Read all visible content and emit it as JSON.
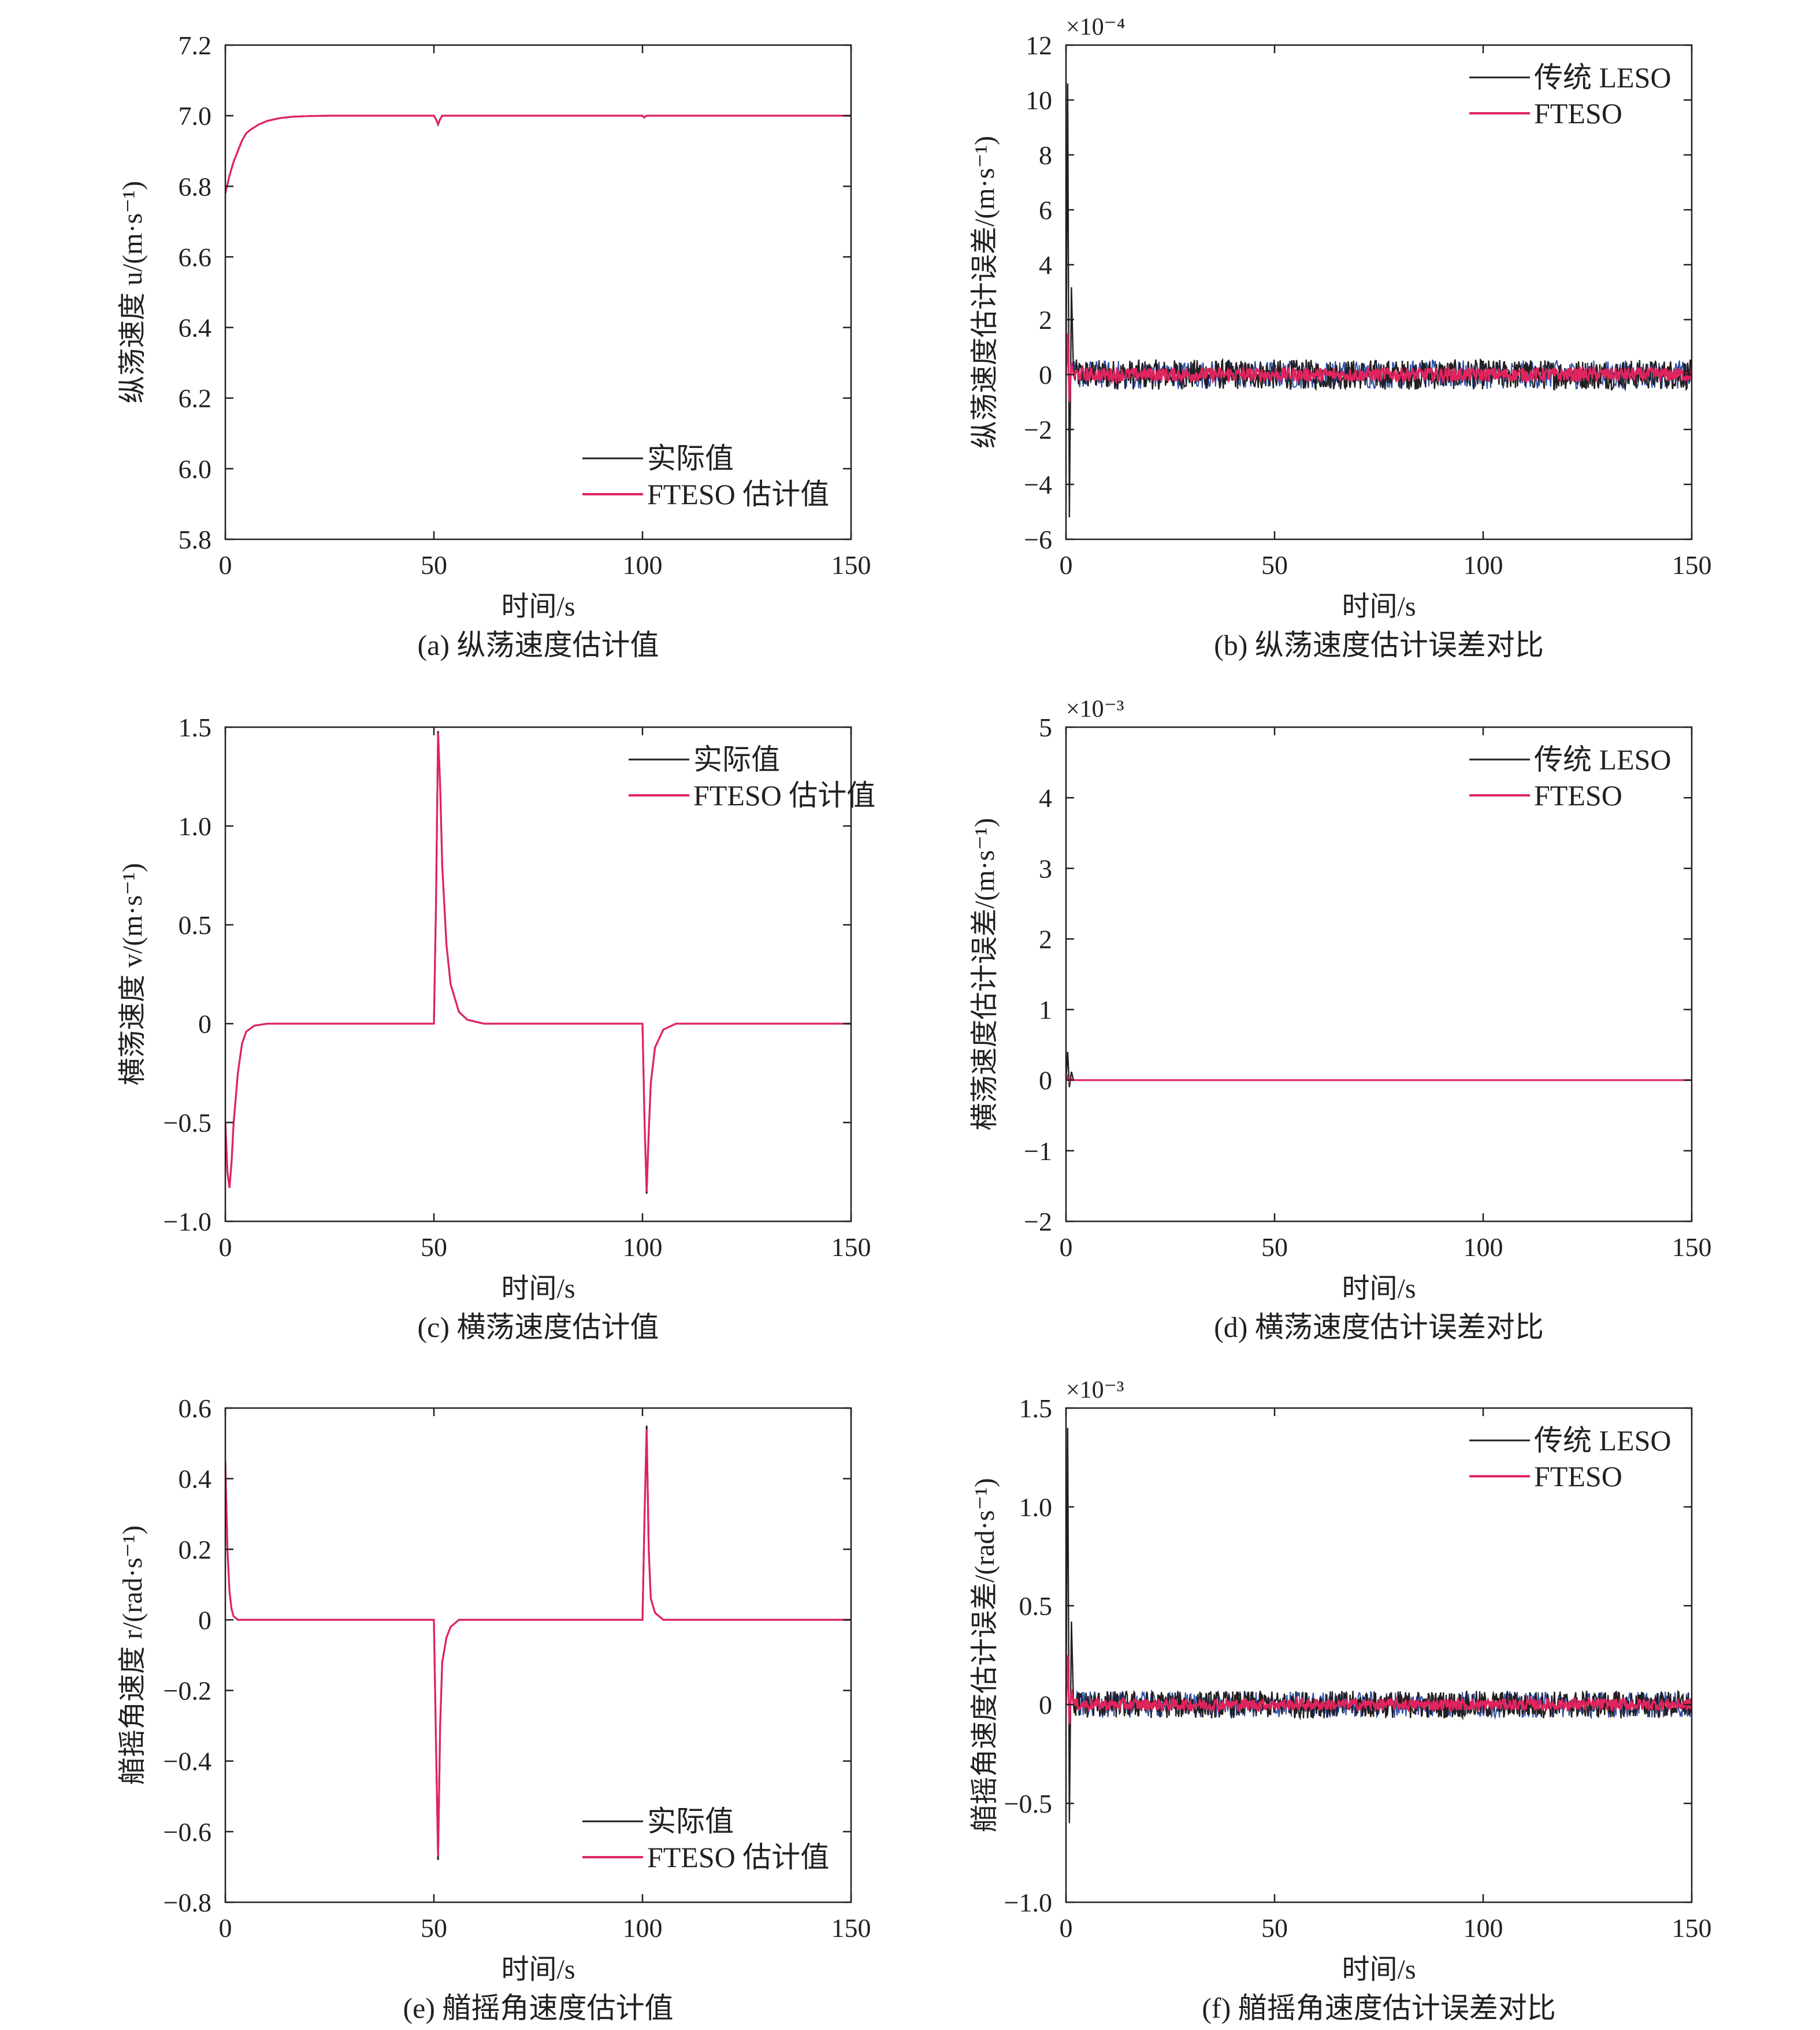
{
  "colors": {
    "actual": "#231f20",
    "fteso": "#e0245e",
    "leso": "#2b4fa6",
    "axis": "#231f20"
  },
  "chart_data": [
    {
      "id": "a",
      "type": "line",
      "caption": "(a) 纵荡速度估计值",
      "xlabel": "时间/s",
      "ylabel": "纵荡速度 u/(m·s⁻¹)",
      "xlim": [
        0,
        150
      ],
      "ylim": [
        5.8,
        7.2
      ],
      "xticks": [
        0,
        50,
        100,
        150
      ],
      "yticks": [
        5.8,
        6.0,
        6.2,
        6.4,
        6.6,
        6.8,
        7.0,
        7.2
      ],
      "ytick_labels": [
        "5.8",
        "6.0",
        "6.2",
        "6.4",
        "6.6",
        "6.8",
        "7.0",
        "7.2"
      ],
      "legend_position": "bottom-right",
      "series": [
        {
          "name": "实际值",
          "color": "#231f20",
          "points": [
            [
              0,
              6.78
            ],
            [
              1,
              6.83
            ],
            [
              2,
              6.87
            ],
            [
              3,
              6.9
            ],
            [
              4,
              6.93
            ],
            [
              5,
              6.95
            ],
            [
              6,
              6.96
            ],
            [
              8,
              6.975
            ],
            [
              10,
              6.985
            ],
            [
              13,
              6.993
            ],
            [
              16,
              6.997
            ],
            [
              20,
              6.999
            ],
            [
              25,
              7.0
            ],
            [
              50,
              7.0
            ],
            [
              50.5,
              6.99
            ],
            [
              51,
              6.975
            ],
            [
              51.5,
              6.99
            ],
            [
              52,
              7.0
            ],
            [
              100,
              7.0
            ],
            [
              100.4,
              6.995
            ],
            [
              101,
              7.0
            ],
            [
              150,
              7.0
            ]
          ]
        },
        {
          "name": "FTESO 估计值",
          "color": "#e0245e",
          "points": [
            [
              0,
              6.78
            ],
            [
              1,
              6.83
            ],
            [
              2,
              6.87
            ],
            [
              3,
              6.9
            ],
            [
              4,
              6.93
            ],
            [
              5,
              6.95
            ],
            [
              6,
              6.96
            ],
            [
              8,
              6.975
            ],
            [
              10,
              6.985
            ],
            [
              13,
              6.993
            ],
            [
              16,
              6.997
            ],
            [
              20,
              6.999
            ],
            [
              25,
              7.0
            ],
            [
              50,
              7.0
            ],
            [
              50.5,
              6.99
            ],
            [
              51,
              6.977
            ],
            [
              51.5,
              6.99
            ],
            [
              52,
              7.0
            ],
            [
              100,
              7.0
            ],
            [
              100.4,
              6.995
            ],
            [
              101,
              7.0
            ],
            [
              150,
              7.0
            ]
          ]
        }
      ]
    },
    {
      "id": "b",
      "type": "line",
      "caption": "(b) 纵荡速度估计误差对比",
      "xlabel": "时间/s",
      "ylabel": "纵荡速度估计误差/(m·s⁻¹)",
      "multiplier": "×10⁻⁴",
      "xlim": [
        0,
        150
      ],
      "ylim": [
        -6,
        12
      ],
      "xticks": [
        0,
        50,
        100,
        150
      ],
      "yticks": [
        -6,
        -4,
        -2,
        0,
        2,
        4,
        6,
        8,
        10,
        12
      ],
      "ytick_labels": [
        "−6",
        "−4",
        "−2",
        "0",
        "2",
        "4",
        "6",
        "8",
        "10",
        "12"
      ],
      "legend_position": "top-right",
      "series": [
        {
          "name": "传统 LESO",
          "color": "#231f20",
          "initial_spike": [
            10.6,
            -5.2
          ],
          "noise_band": [
            -0.55,
            0.55
          ]
        },
        {
          "name": "FTESO",
          "color": "#e0245e",
          "initial_spike": [
            1.5,
            -1.0
          ],
          "noise_band": [
            -0.25,
            0.25
          ]
        }
      ]
    },
    {
      "id": "c",
      "type": "line",
      "caption": "(c) 横荡速度估计值",
      "xlabel": "时间/s",
      "ylabel": "横荡速度 v/(m·s⁻¹)",
      "xlim": [
        0,
        150
      ],
      "ylim": [
        -1.0,
        1.5
      ],
      "xticks": [
        0,
        50,
        100,
        150
      ],
      "yticks": [
        -1.0,
        -0.5,
        0,
        0.5,
        1.0,
        1.5
      ],
      "ytick_labels": [
        "−1.0",
        "−0.5",
        "0",
        "0.5",
        "1.0",
        "1.5"
      ],
      "legend_position": "top-right",
      "series": [
        {
          "name": "实际值",
          "color": "#231f20",
          "points": [
            [
              0,
              -0.5
            ],
            [
              0.5,
              -0.75
            ],
            [
              1,
              -0.83
            ],
            [
              1.5,
              -0.7
            ],
            [
              2,
              -0.5
            ],
            [
              3,
              -0.25
            ],
            [
              4,
              -0.1
            ],
            [
              5,
              -0.04
            ],
            [
              7,
              -0.01
            ],
            [
              10,
              0
            ],
            [
              50,
              0
            ],
            [
              50.5,
              0.6
            ],
            [
              51,
              1.48
            ],
            [
              51.5,
              1.2
            ],
            [
              52,
              0.8
            ],
            [
              53,
              0.4
            ],
            [
              54,
              0.2
            ],
            [
              56,
              0.06
            ],
            [
              58,
              0.02
            ],
            [
              62,
              0
            ],
            [
              100,
              0
            ],
            [
              100.5,
              -0.5
            ],
            [
              101,
              -0.86
            ],
            [
              101.5,
              -0.55
            ],
            [
              102,
              -0.3
            ],
            [
              103,
              -0.12
            ],
            [
              105,
              -0.03
            ],
            [
              108,
              0
            ],
            [
              150,
              0
            ]
          ]
        },
        {
          "name": "FTESO 估计值",
          "color": "#e0245e",
          "points": [
            [
              0,
              -0.5
            ],
            [
              0.5,
              -0.75
            ],
            [
              1,
              -0.83
            ],
            [
              1.5,
              -0.7
            ],
            [
              2,
              -0.5
            ],
            [
              3,
              -0.25
            ],
            [
              4,
              -0.1
            ],
            [
              5,
              -0.04
            ],
            [
              7,
              -0.01
            ],
            [
              10,
              0
            ],
            [
              50,
              0
            ],
            [
              50.5,
              0.6
            ],
            [
              51,
              1.47
            ],
            [
              51.5,
              1.2
            ],
            [
              52,
              0.8
            ],
            [
              53,
              0.4
            ],
            [
              54,
              0.2
            ],
            [
              56,
              0.06
            ],
            [
              58,
              0.02
            ],
            [
              62,
              0
            ],
            [
              100,
              0
            ],
            [
              100.5,
              -0.5
            ],
            [
              101,
              -0.85
            ],
            [
              101.5,
              -0.55
            ],
            [
              102,
              -0.3
            ],
            [
              103,
              -0.12
            ],
            [
              105,
              -0.03
            ],
            [
              108,
              0
            ],
            [
              150,
              0
            ]
          ]
        }
      ]
    },
    {
      "id": "d",
      "type": "line",
      "caption": "(d) 横荡速度估计误差对比",
      "xlabel": "时间/s",
      "ylabel": "横荡速度估计误差/(m·s⁻¹)",
      "multiplier": "×10⁻³",
      "xlim": [
        0,
        150
      ],
      "ylim": [
        -2,
        5
      ],
      "xticks": [
        0,
        50,
        100,
        150
      ],
      "yticks": [
        -2,
        -1,
        0,
        1,
        2,
        3,
        4,
        5
      ],
      "ytick_labels": [
        "−2",
        "−1",
        "0",
        "1",
        "2",
        "3",
        "4",
        "5"
      ],
      "legend_position": "top-right",
      "series": [
        {
          "name": "传统 LESO",
          "color": "#231f20",
          "initial_spike": [
            0.4,
            -0.1
          ],
          "noise_band": [
            0,
            0
          ]
        },
        {
          "name": "FTESO",
          "color": "#e0245e",
          "initial_spike": [
            0.05,
            -0.02
          ],
          "noise_band": [
            0,
            0
          ]
        }
      ]
    },
    {
      "id": "e",
      "type": "line",
      "caption": "(e) 艏摇角速度估计值",
      "xlabel": "时间/s",
      "ylabel": "艏摇角速度 r/(rad·s⁻¹)",
      "xlim": [
        0,
        150
      ],
      "ylim": [
        -0.8,
        0.6
      ],
      "xticks": [
        0,
        50,
        100,
        150
      ],
      "yticks": [
        -0.8,
        -0.6,
        -0.4,
        -0.2,
        0,
        0.2,
        0.4,
        0.6
      ],
      "ytick_labels": [
        "−0.8",
        "−0.6",
        "−0.4",
        "−0.2",
        "0",
        "0.2",
        "0.4",
        "0.6"
      ],
      "legend_position": "bottom-right",
      "series": [
        {
          "name": "实际值",
          "color": "#231f20",
          "points": [
            [
              0,
              0.45
            ],
            [
              0.5,
              0.2
            ],
            [
              1,
              0.08
            ],
            [
              1.5,
              0.03
            ],
            [
              2,
              0.01
            ],
            [
              3,
              0
            ],
            [
              50,
              0
            ],
            [
              50.5,
              -0.35
            ],
            [
              51,
              -0.68
            ],
            [
              51.5,
              -0.3
            ],
            [
              52,
              -0.12
            ],
            [
              53,
              -0.05
            ],
            [
              54,
              -0.02
            ],
            [
              56,
              0
            ],
            [
              100,
              0
            ],
            [
              100.5,
              0.3
            ],
            [
              101,
              0.55
            ],
            [
              101.5,
              0.2
            ],
            [
              102,
              0.06
            ],
            [
              103,
              0.02
            ],
            [
              105,
              0
            ],
            [
              150,
              0
            ]
          ]
        },
        {
          "name": "FTESO 估计值",
          "color": "#e0245e",
          "points": [
            [
              0,
              0.44
            ],
            [
              0.5,
              0.2
            ],
            [
              1,
              0.08
            ],
            [
              1.5,
              0.03
            ],
            [
              2,
              0.01
            ],
            [
              3,
              0
            ],
            [
              50,
              0
            ],
            [
              50.5,
              -0.35
            ],
            [
              51,
              -0.67
            ],
            [
              51.5,
              -0.3
            ],
            [
              52,
              -0.12
            ],
            [
              53,
              -0.05
            ],
            [
              54,
              -0.02
            ],
            [
              56,
              0
            ],
            [
              100,
              0
            ],
            [
              100.5,
              0.3
            ],
            [
              101,
              0.54
            ],
            [
              101.5,
              0.2
            ],
            [
              102,
              0.06
            ],
            [
              103,
              0.02
            ],
            [
              105,
              0
            ],
            [
              150,
              0
            ]
          ]
        }
      ]
    },
    {
      "id": "f",
      "type": "line",
      "caption": "(f) 艏摇角速度估计误差对比",
      "xlabel": "时间/s",
      "ylabel": "艏摇角速度估计误差/(rad·s⁻¹)",
      "multiplier": "×10⁻³",
      "xlim": [
        0,
        150
      ],
      "ylim": [
        -1.0,
        1.5
      ],
      "xticks": [
        0,
        50,
        100,
        150
      ],
      "yticks": [
        -1.0,
        -0.5,
        0,
        0.5,
        1.0,
        1.5
      ],
      "ytick_labels": [
        "−1.0",
        "−0.5",
        "0",
        "0.5",
        "1.0",
        "1.5"
      ],
      "legend_position": "top-right",
      "series": [
        {
          "name": "传统 LESO",
          "color": "#231f20",
          "initial_spike": [
            1.4,
            -0.6
          ],
          "noise_band": [
            -0.07,
            0.07
          ]
        },
        {
          "name": "FTESO",
          "color": "#e0245e",
          "initial_spike": [
            0.25,
            -0.1
          ],
          "noise_band": [
            -0.03,
            0.03
          ]
        }
      ]
    }
  ]
}
